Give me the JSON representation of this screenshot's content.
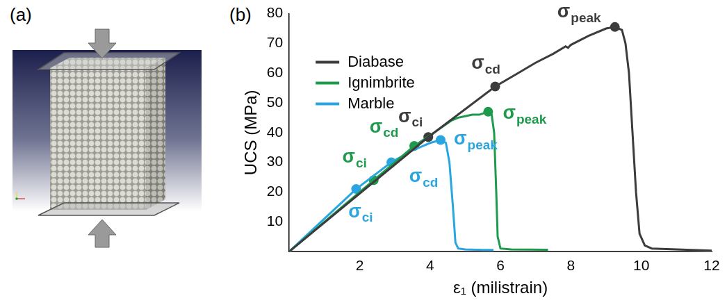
{
  "panel_labels": [
    "(a)",
    "(b)"
  ],
  "chart_data": {
    "type": "line",
    "x_label": "ε₁ (milistrain)",
    "y_label": "UCS (MPa)",
    "xlim": [
      0,
      12
    ],
    "xticks": [
      2,
      4,
      6,
      8,
      10,
      12
    ],
    "ylim": [
      0,
      80
    ],
    "yticks": [
      10,
      20,
      30,
      40,
      50,
      60,
      70,
      80
    ],
    "grid": false,
    "legend": "upper left",
    "series": [
      {
        "name": "Diabase",
        "color": "#3c3c3c",
        "x": [
          0,
          3.95,
          5.85,
          6.5,
          7.0,
          7.5,
          7.85,
          7.92,
          8.0,
          8.5,
          9.0,
          9.25,
          9.45,
          9.55,
          9.65,
          9.75,
          9.85,
          9.95,
          10.1,
          10.3,
          12.0
        ],
        "values": [
          0,
          38.5,
          55.5,
          60,
          63.5,
          66.5,
          69,
          68.5,
          69.5,
          72.5,
          75,
          75.5,
          74.5,
          70,
          60,
          40,
          20,
          6,
          2,
          1,
          0.3
        ],
        "stress_points": [
          {
            "label": "σci",
            "x": 3.95,
            "y": 38.5
          },
          {
            "label": "σcd",
            "x": 5.85,
            "y": 55.5
          },
          {
            "label": "σpeak",
            "x": 9.25,
            "y": 75.5
          }
        ]
      },
      {
        "name": "Ignimbrite",
        "color": "#1e9a4c",
        "x": [
          0,
          2.4,
          3.55,
          4.0,
          4.3,
          4.6,
          4.8,
          5.0,
          5.2,
          5.4,
          5.65,
          5.75,
          5.82,
          5.88,
          5.92,
          6.0,
          6.3,
          7.35
        ],
        "values": [
          0,
          24,
          35.5,
          39,
          41.5,
          44,
          45,
          45.5,
          46,
          46,
          47,
          46,
          40,
          20,
          5,
          1,
          0.7,
          0.6
        ],
        "stress_points": [
          {
            "label": "σci",
            "x": 2.4,
            "y": 24
          },
          {
            "label": "σcd",
            "x": 3.55,
            "y": 35.5
          },
          {
            "label": "σpeak",
            "x": 5.65,
            "y": 47
          }
        ]
      },
      {
        "name": "Marble",
        "color": "#29a5e0",
        "x": [
          0,
          1.9,
          2.9,
          3.5,
          4.0,
          4.3,
          4.45,
          4.55,
          4.65,
          4.72,
          4.8,
          5.0,
          5.5,
          5.8
        ],
        "values": [
          0,
          21,
          30,
          34,
          36.5,
          37.5,
          36.5,
          30,
          15,
          3,
          1,
          0.7,
          0.5,
          0.5
        ],
        "stress_points": [
          {
            "label": "σci",
            "x": 1.9,
            "y": 21
          },
          {
            "label": "σcd",
            "x": 2.9,
            "y": 30
          },
          {
            "label": "σpeak",
            "x": 4.3,
            "y": 37.5
          }
        ]
      }
    ]
  }
}
